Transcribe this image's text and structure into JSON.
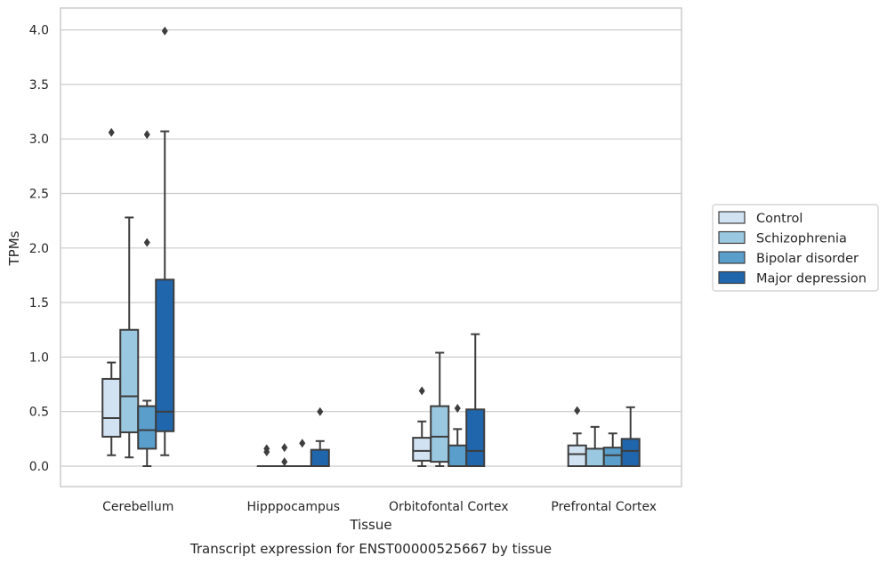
{
  "chart_data": {
    "type": "box",
    "title": "",
    "caption": "Transcript expression for ENST00000525667 by tissue",
    "xlabel": "Tissue",
    "ylabel": "TPMs",
    "ylim": [
      -0.2,
      4.2
    ],
    "yticks": [
      0.0,
      0.5,
      1.0,
      1.5,
      2.0,
      2.5,
      3.0,
      3.5,
      4.0
    ],
    "ytick_labels": [
      "0.0",
      "0.5",
      "1.0",
      "1.5",
      "2.0",
      "2.5",
      "3.0",
      "3.5",
      "4.0"
    ],
    "grid": "horizontal",
    "legend_position": "right",
    "categories": [
      "Cerebellum",
      "Hipppocampus",
      "Orbitofontal Cortex",
      "Prefrontal Cortex"
    ],
    "series": [
      {
        "name": "Control",
        "color": "#d1e2f2",
        "boxes": [
          {
            "q1": 0.27,
            "median": 0.44,
            "q3": 0.8,
            "whislo": 0.1,
            "whishi": 0.95,
            "fliers": [
              3.06
            ]
          },
          {
            "q1": 0.0,
            "median": 0.0,
            "q3": 0.0,
            "whislo": 0.0,
            "whishi": 0.0,
            "fliers": [
              0.13,
              0.16
            ]
          },
          {
            "q1": 0.05,
            "median": 0.14,
            "q3": 0.26,
            "whislo": 0.0,
            "whishi": 0.41,
            "fliers": [
              0.69
            ]
          },
          {
            "q1": 0.0,
            "median": 0.11,
            "q3": 0.19,
            "whislo": 0.0,
            "whishi": 0.3,
            "fliers": [
              0.51
            ]
          }
        ]
      },
      {
        "name": "Schizophrenia",
        "color": "#9ac8e0",
        "boxes": [
          {
            "q1": 0.31,
            "median": 0.64,
            "q3": 1.25,
            "whislo": 0.08,
            "whishi": 2.28,
            "fliers": []
          },
          {
            "q1": 0.0,
            "median": 0.0,
            "q3": 0.0,
            "whislo": 0.0,
            "whishi": 0.0,
            "fliers": [
              0.04,
              0.17
            ]
          },
          {
            "q1": 0.04,
            "median": 0.27,
            "q3": 0.55,
            "whislo": 0.0,
            "whishi": 1.04,
            "fliers": []
          },
          {
            "q1": 0.0,
            "median": 0.0,
            "q3": 0.16,
            "whislo": 0.0,
            "whishi": 0.36,
            "fliers": []
          }
        ]
      },
      {
        "name": "Bipolar disorder",
        "color": "#5a9ecc",
        "boxes": [
          {
            "q1": 0.16,
            "median": 0.33,
            "q3": 0.55,
            "whislo": 0.0,
            "whishi": 0.6,
            "fliers": [
              2.05,
              3.04
            ]
          },
          {
            "q1": 0.0,
            "median": 0.0,
            "q3": 0.0,
            "whislo": 0.0,
            "whishi": 0.0,
            "fliers": [
              0.21
            ]
          },
          {
            "q1": 0.0,
            "median": 0.0,
            "q3": 0.19,
            "whislo": 0.0,
            "whishi": 0.34,
            "fliers": [
              0.53
            ]
          },
          {
            "q1": 0.0,
            "median": 0.1,
            "q3": 0.17,
            "whislo": 0.0,
            "whishi": 0.3,
            "fliers": []
          }
        ]
      },
      {
        "name": "Major depression",
        "color": "#2066ac",
        "boxes": [
          {
            "q1": 0.32,
            "median": 0.5,
            "q3": 1.71,
            "whislo": 0.1,
            "whishi": 3.07,
            "fliers": [
              3.99
            ]
          },
          {
            "q1": 0.0,
            "median": 0.0,
            "q3": 0.15,
            "whislo": 0.0,
            "whishi": 0.23,
            "fliers": [
              0.5
            ]
          },
          {
            "q1": 0.0,
            "median": 0.14,
            "q3": 0.52,
            "whislo": 0.0,
            "whishi": 1.21,
            "fliers": []
          },
          {
            "q1": 0.0,
            "median": 0.14,
            "q3": 0.25,
            "whislo": 0.0,
            "whishi": 0.54,
            "fliers": []
          }
        ]
      }
    ]
  }
}
